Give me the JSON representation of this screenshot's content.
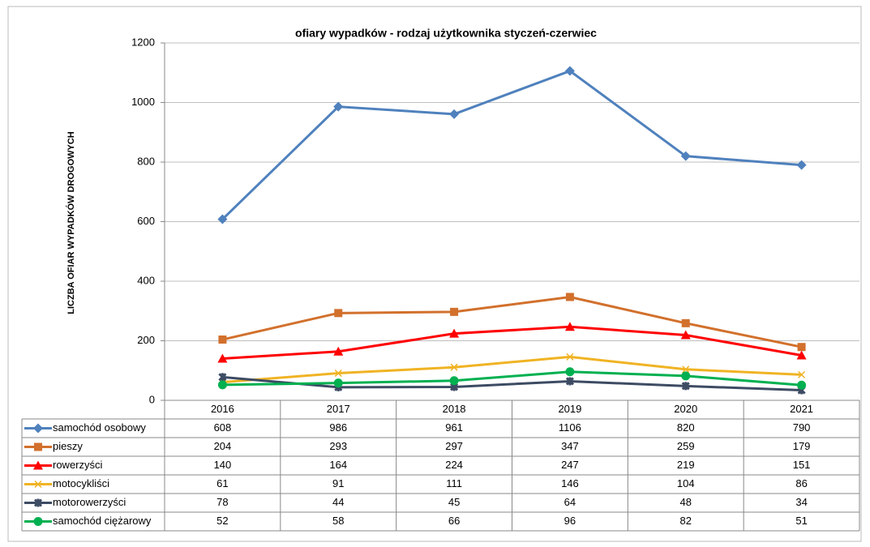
{
  "chart_data": {
    "type": "line",
    "title": "ofiary wypadków - rodzaj użytkownika styczeń-czerwiec",
    "y_label": "LICZBA OFIAR WYPADKÓW DROGOWYCH",
    "categories": [
      "2016",
      "2017",
      "2018",
      "2019",
      "2020",
      "2021"
    ],
    "ylim": [
      0,
      1200
    ],
    "yticks": [
      0,
      200,
      400,
      600,
      800,
      1000,
      1200
    ],
    "grid": true,
    "series": [
      {
        "name": "samochód osobowy",
        "color": "#4f81bd",
        "marker": "diamond",
        "values": [
          608,
          986,
          961,
          1106,
          820,
          790
        ]
      },
      {
        "name": "pieszy",
        "color": "#d2702c",
        "marker": "square",
        "values": [
          204,
          293,
          297,
          347,
          259,
          179
        ]
      },
      {
        "name": "rowerzyści",
        "color": "#ff0000",
        "marker": "triangle",
        "values": [
          140,
          164,
          224,
          247,
          219,
          151
        ]
      },
      {
        "name": "motocykliści",
        "color": "#f0b323",
        "marker": "x",
        "values": [
          61,
          91,
          111,
          146,
          104,
          86
        ]
      },
      {
        "name": "motorowerzyści",
        "color": "#3d4b63",
        "marker": "star",
        "values": [
          78,
          44,
          45,
          64,
          48,
          34
        ]
      },
      {
        "name": "samochód ciężarowy",
        "color": "#00b050",
        "marker": "circle",
        "values": [
          52,
          58,
          66,
          96,
          82,
          51
        ]
      }
    ]
  }
}
